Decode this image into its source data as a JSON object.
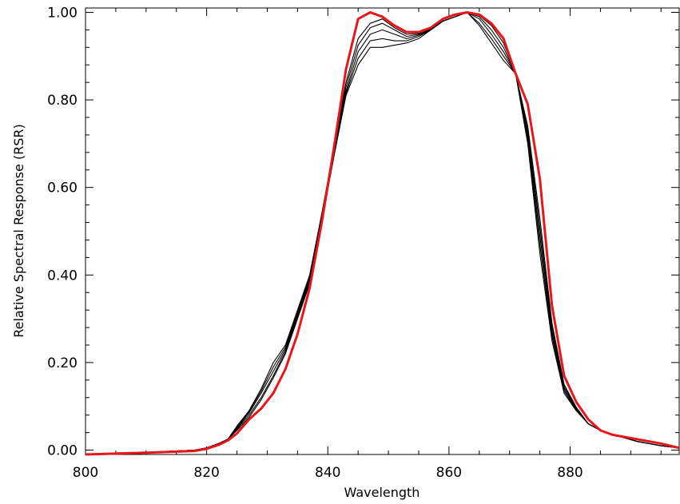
{
  "chart_data": {
    "type": "line",
    "title": "",
    "xlabel": "Wavelength",
    "ylabel": "Relative Spectral Response (RSR)",
    "xlim": [
      800,
      898
    ],
    "ylim": [
      -0.01,
      1.01
    ],
    "x_ticks": [
      800,
      820,
      840,
      860,
      880
    ],
    "x_tick_labels": [
      "800",
      "820",
      "840",
      "860",
      "880"
    ],
    "y_ticks": [
      0.0,
      0.2,
      0.4,
      0.6,
      0.8,
      1.0
    ],
    "y_tick_labels": [
      "0.00",
      "0.20",
      "0.40",
      "0.60",
      "0.80",
      "1.00"
    ],
    "grid": false,
    "colors": {
      "red_series": "#e8151b",
      "black_series": "#000000"
    },
    "x": [
      800,
      810,
      818,
      820,
      822,
      823.5,
      825,
      827,
      829,
      831,
      833,
      835,
      837,
      839,
      841,
      843,
      845,
      847,
      849,
      851,
      853,
      855,
      857,
      859,
      861,
      863,
      865,
      867,
      869,
      871,
      873,
      875,
      877,
      879,
      881,
      883,
      885,
      887,
      889,
      891,
      893,
      895,
      898
    ],
    "series": [
      {
        "values": [
          -0.01,
          -0.005,
          0.0,
          0.005,
          0.015,
          0.025,
          0.045,
          0.075,
          0.115,
          0.165,
          0.22,
          0.3,
          0.38,
          0.52,
          0.67,
          0.81,
          0.88,
          0.92,
          0.92,
          0.925,
          0.93,
          0.94,
          0.96,
          0.98,
          0.99,
          1.0,
          0.97,
          0.93,
          0.89,
          0.86,
          0.7,
          0.45,
          0.25,
          0.13,
          0.09,
          0.06,
          0.045,
          0.035,
          0.028,
          0.02,
          0.015,
          0.01,
          0.005
        ]
      },
      {
        "values": [
          -0.01,
          -0.005,
          0.0,
          0.005,
          0.015,
          0.025,
          0.048,
          0.08,
          0.12,
          0.17,
          0.225,
          0.305,
          0.385,
          0.525,
          0.675,
          0.815,
          0.895,
          0.935,
          0.94,
          0.935,
          0.935,
          0.945,
          0.96,
          0.98,
          0.99,
          1.0,
          0.975,
          0.94,
          0.9,
          0.86,
          0.71,
          0.47,
          0.26,
          0.135,
          0.092,
          0.06,
          0.045,
          0.035,
          0.028,
          0.02,
          0.015,
          0.01,
          0.005
        ]
      },
      {
        "values": [
          -0.01,
          -0.005,
          0.0,
          0.005,
          0.015,
          0.025,
          0.05,
          0.085,
          0.13,
          0.18,
          0.23,
          0.31,
          0.39,
          0.53,
          0.68,
          0.82,
          0.91,
          0.95,
          0.96,
          0.95,
          0.94,
          0.948,
          0.96,
          0.98,
          0.99,
          1.0,
          0.985,
          0.95,
          0.91,
          0.86,
          0.72,
          0.49,
          0.27,
          0.14,
          0.094,
          0.06,
          0.045,
          0.035,
          0.028,
          0.02,
          0.015,
          0.01,
          0.005
        ]
      },
      {
        "values": [
          -0.01,
          -0.005,
          0.0,
          0.005,
          0.015,
          0.025,
          0.052,
          0.088,
          0.135,
          0.19,
          0.235,
          0.315,
          0.395,
          0.535,
          0.685,
          0.83,
          0.925,
          0.965,
          0.975,
          0.96,
          0.945,
          0.95,
          0.962,
          0.98,
          0.99,
          1.0,
          0.99,
          0.96,
          0.92,
          0.86,
          0.73,
          0.51,
          0.28,
          0.145,
          0.096,
          0.06,
          0.045,
          0.035,
          0.028,
          0.02,
          0.015,
          0.01,
          0.005
        ]
      },
      {
        "values": [
          -0.01,
          -0.005,
          0.0,
          0.005,
          0.015,
          0.025,
          0.055,
          0.09,
          0.14,
          0.2,
          0.24,
          0.32,
          0.4,
          0.54,
          0.69,
          0.84,
          0.94,
          0.975,
          0.985,
          0.965,
          0.95,
          0.952,
          0.965,
          0.98,
          0.99,
          1.0,
          0.993,
          0.97,
          0.93,
          0.86,
          0.74,
          0.53,
          0.29,
          0.15,
          0.098,
          0.06,
          0.045,
          0.035,
          0.028,
          0.02,
          0.015,
          0.01,
          0.005
        ]
      }
    ],
    "red_series": {
      "values": [
        -0.01,
        -0.006,
        -0.002,
        0.003,
        0.012,
        0.022,
        0.038,
        0.07,
        0.095,
        0.13,
        0.185,
        0.265,
        0.37,
        0.52,
        0.69,
        0.87,
        0.985,
        1.0,
        0.99,
        0.97,
        0.955,
        0.955,
        0.965,
        0.985,
        0.995,
        1.0,
        0.995,
        0.975,
        0.94,
        0.86,
        0.79,
        0.62,
        0.33,
        0.17,
        0.11,
        0.07,
        0.045,
        0.035,
        0.03,
        0.025,
        0.02,
        0.015,
        0.005
      ]
    }
  }
}
